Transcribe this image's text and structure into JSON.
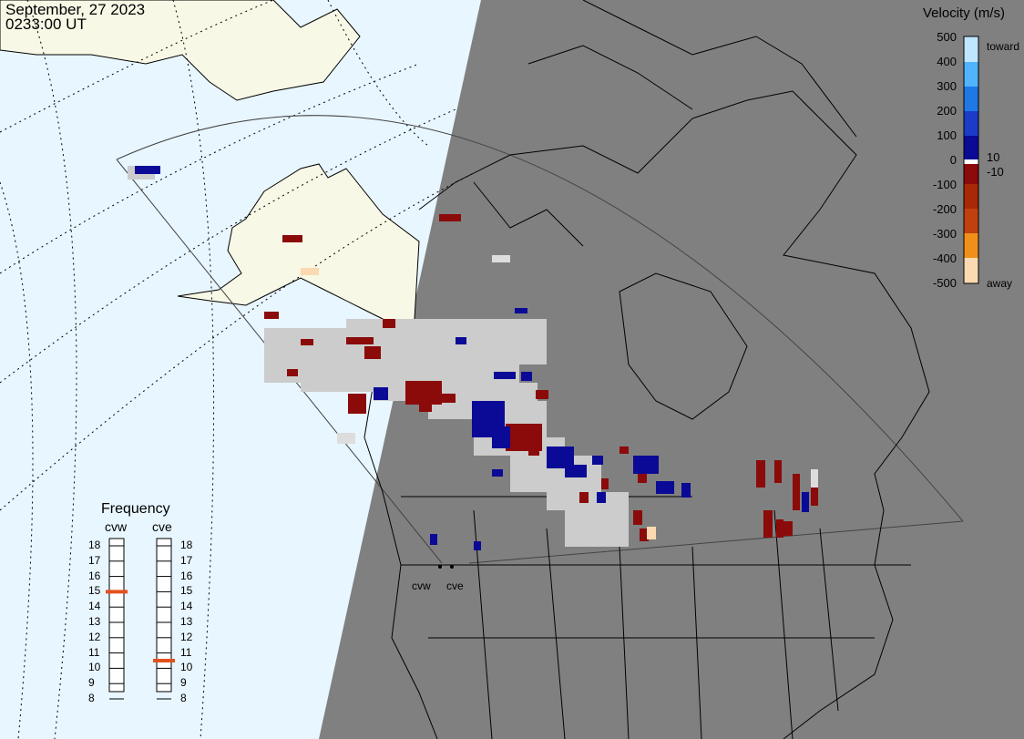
{
  "timestamp": {
    "date": "September, 27 2023",
    "time": "0233:00 UT"
  },
  "velocity_legend": {
    "title": "Velocity (m/s)",
    "ticks": [
      "500",
      "400",
      "300",
      "200",
      "100",
      "10",
      "0",
      "-10",
      "-100",
      "-200",
      "-300",
      "-400",
      "-500"
    ],
    "toward_label": "toward",
    "away_label": "away"
  },
  "radars": [
    {
      "code": "cvw",
      "frequency_mhz": 15,
      "color": "#e3511e"
    },
    {
      "code": "cve",
      "frequency_mhz": 10.5,
      "color": "#e3511e"
    }
  ],
  "frequency_panel": {
    "title": "Frequency",
    "scale": [
      "18",
      "17",
      "16",
      "15",
      "14",
      "13",
      "12",
      "11",
      "10",
      "9",
      "8"
    ]
  },
  "colors": {
    "night": "#808080",
    "day_ocean": "#e8f6ff",
    "day_land": "#f8f8e6",
    "toward": [
      "#0a0a96",
      "#1a3cc8",
      "#1e78e6",
      "#50b4ff",
      "#bfe6ff"
    ],
    "away": [
      "#8b0a0a",
      "#a82808",
      "#e05a0a",
      "#f0a050",
      "#fcd9b0"
    ],
    "ground_scatter": "#cccccc"
  }
}
